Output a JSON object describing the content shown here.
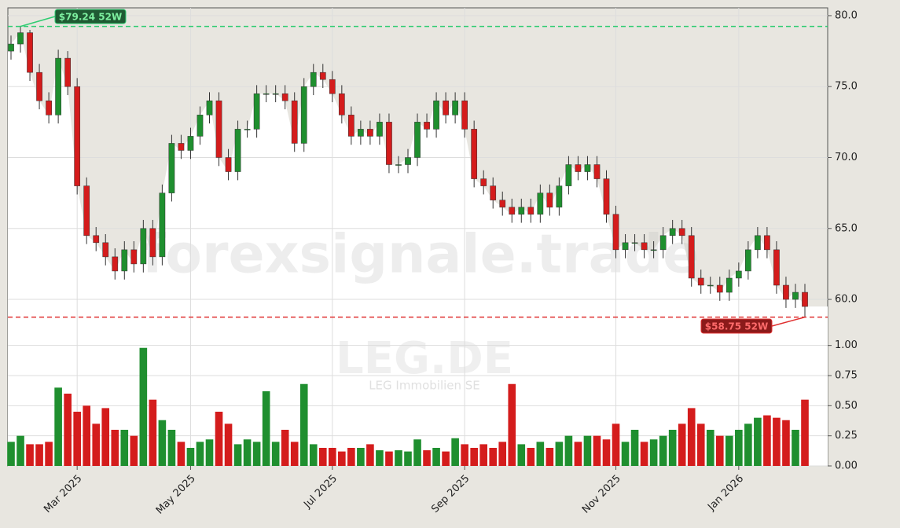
{
  "chart_data": {
    "type": "candlestick",
    "categories": [
      null,
      null,
      null,
      null,
      null,
      null,
      null,
      "Mar 2025",
      null,
      null,
      null,
      null,
      null,
      null,
      null,
      null,
      null,
      null,
      null,
      "May 2025",
      null,
      null,
      null,
      null,
      null,
      null,
      null,
      null,
      null,
      null,
      null,
      null,
      null,
      null,
      "Jul 2025",
      null,
      null,
      null,
      null,
      null,
      null,
      null,
      null,
      null,
      null,
      null,
      null,
      null,
      "Sep 2025",
      null,
      null,
      null,
      null,
      null,
      null,
      null,
      null,
      null,
      null,
      null,
      null,
      null,
      null,
      null,
      "Nov 2025",
      null,
      null,
      null,
      null,
      null,
      null,
      null,
      null,
      null,
      null,
      null,
      null,
      "Jan 2026",
      null,
      null,
      null,
      null,
      null,
      null,
      null
    ],
    "open": [
      77.5,
      78,
      78.8,
      76,
      74,
      73,
      77,
      75,
      68,
      64.5,
      64,
      63,
      62,
      63.5,
      62.5,
      65,
      63,
      67.5,
      71,
      70.5,
      71.5,
      73,
      74,
      70,
      69,
      72,
      72,
      74.5,
      74.5,
      74.5,
      74,
      71,
      75,
      76,
      75.5,
      74.5,
      73,
      71.5,
      72,
      71.5,
      72.5,
      69.5,
      69.5,
      70,
      72.5,
      72,
      74,
      73,
      74,
      72,
      68.5,
      68,
      67,
      66.5,
      66,
      66.5,
      66,
      67.5,
      66.5,
      68,
      69.5,
      69,
      69.5,
      68.5,
      66,
      63.5,
      64,
      64,
      63.5,
      63.5,
      64.5,
      65,
      64.5,
      61.5,
      61,
      61,
      60.5,
      61.5,
      62,
      63.5,
      64.5,
      63.5,
      61,
      60,
      60.5
    ],
    "high": [
      78.6,
      79.24,
      79.0,
      76.6,
      74.6,
      77.6,
      77.5,
      75.6,
      68.6,
      65.1,
      64.6,
      63.6,
      64.1,
      64.1,
      65.6,
      65.6,
      68.1,
      71.6,
      71.6,
      72.1,
      73.6,
      74.6,
      74.6,
      70.6,
      72.6,
      72.6,
      75.1,
      75.1,
      75.1,
      75.1,
      74.6,
      75.6,
      76.6,
      76.6,
      76.1,
      75.1,
      73.6,
      72.6,
      72.6,
      73.1,
      73.1,
      70.1,
      70.6,
      73.1,
      73.1,
      74.6,
      74.6,
      74.6,
      74.6,
      72.6,
      69.1,
      68.6,
      67.6,
      67.1,
      67.1,
      67.1,
      68.1,
      68.1,
      68.6,
      70.1,
      70.1,
      70.1,
      70.1,
      69.1,
      66.6,
      64.6,
      64.6,
      64.6,
      64.1,
      65.1,
      65.6,
      65.6,
      65.1,
      62.1,
      61.6,
      61.6,
      62.1,
      62.6,
      64.1,
      65.1,
      65.1,
      64.1,
      61.6,
      61.1,
      61.1
    ],
    "low": [
      76.9,
      77.4,
      75.4,
      73.4,
      72.4,
      72.4,
      74.4,
      67.4,
      63.9,
      63.4,
      62.4,
      61.4,
      61.4,
      61.9,
      61.9,
      62.4,
      62.4,
      66.9,
      69.9,
      69.9,
      70.9,
      72.4,
      69.4,
      68.4,
      68.4,
      71.4,
      71.4,
      73.9,
      73.9,
      73.4,
      70.4,
      70.4,
      74.4,
      74.9,
      73.9,
      72.4,
      70.9,
      70.9,
      70.9,
      70.9,
      68.9,
      68.9,
      68.9,
      69.4,
      71.4,
      71.4,
      72.4,
      72.4,
      71.4,
      67.9,
      67.4,
      66.4,
      65.9,
      65.4,
      65.4,
      65.4,
      65.4,
      65.9,
      65.9,
      67.4,
      68.4,
      68.4,
      67.9,
      65.4,
      62.9,
      62.9,
      63.4,
      62.9,
      62.9,
      62.9,
      63.9,
      63.9,
      60.9,
      60.4,
      60.4,
      59.9,
      59.9,
      60.9,
      61.4,
      62.9,
      62.9,
      60.4,
      59.4,
      59.4,
      58.75
    ],
    "close": [
      78,
      78.8,
      76,
      74,
      73,
      77,
      75,
      68,
      64.5,
      64,
      63,
      62,
      63.5,
      62.5,
      65,
      63,
      67.5,
      71,
      70.5,
      71.5,
      73,
      74,
      70,
      69,
      72,
      72,
      74.5,
      74.5,
      74.5,
      74,
      71,
      75,
      76,
      75.5,
      74.5,
      73,
      71.5,
      72,
      71.5,
      72.5,
      69.5,
      69.5,
      70,
      72.5,
      72,
      74,
      73,
      74,
      72,
      68.5,
      68,
      67,
      66.5,
      66,
      66.5,
      66,
      67.5,
      66.5,
      68,
      69.5,
      69,
      69.5,
      68.5,
      66,
      63.5,
      64,
      64,
      63.5,
      63.5,
      64.5,
      65,
      64.5,
      61.5,
      61,
      61,
      60.5,
      61.5,
      62,
      63.5,
      64.5,
      63.5,
      61,
      60,
      60.5,
      59.5
    ],
    "ylim": [
      57.4,
      80.55
    ],
    "yticks": [
      {
        "value": 60,
        "label": "60.0"
      },
      {
        "value": 65,
        "label": "65.0"
      },
      {
        "value": 70,
        "label": "70.0"
      },
      {
        "value": 75,
        "label": "75.0"
      },
      {
        "value": 80,
        "label": "80.0"
      }
    ],
    "volume": {
      "values": [
        0.2,
        0.25,
        0.18,
        0.18,
        0.2,
        0.65,
        0.6,
        0.45,
        0.5,
        0.35,
        0.48,
        0.3,
        0.3,
        0.25,
        0.98,
        0.55,
        0.38,
        0.3,
        0.2,
        0.15,
        0.2,
        0.22,
        0.45,
        0.35,
        0.18,
        0.22,
        0.2,
        0.62,
        0.2,
        0.3,
        0.2,
        0.68,
        0.18,
        0.15,
        0.15,
        0.12,
        0.15,
        0.15,
        0.18,
        0.13,
        0.12,
        0.13,
        0.12,
        0.22,
        0.13,
        0.15,
        0.12,
        0.23,
        0.18,
        0.15,
        0.18,
        0.15,
        0.2,
        0.68,
        0.18,
        0.15,
        0.2,
        0.15,
        0.2,
        0.25,
        0.2,
        0.25,
        0.25,
        0.22,
        0.35,
        0.2,
        0.3,
        0.2,
        0.22,
        0.25,
        0.3,
        0.35,
        0.48,
        0.35,
        0.3,
        0.25,
        0.25,
        0.3,
        0.35,
        0.4,
        0.42,
        0.4,
        0.38,
        0.3,
        0.55
      ],
      "ylim": [
        0,
        1.05
      ],
      "yticks": [
        {
          "value": 0,
          "label": "0.00"
        },
        {
          "value": 0.25,
          "label": "0.25"
        },
        {
          "value": 0.5,
          "label": "0.50"
        },
        {
          "value": 0.75,
          "label": "0.75"
        },
        {
          "value": 1,
          "label": "1.00"
        }
      ]
    },
    "up_color": "#1f8f2f",
    "down_color": "#d41c1c",
    "grid": true,
    "annotations": [
      {
        "value": 79.24,
        "label": "$79.24 52W",
        "color": "#2ecc71"
      },
      {
        "value": 58.75,
        "label": "$58.75 52W",
        "color": "#e03030"
      }
    ],
    "watermark": [
      "forexsignale.trade",
      "LEG.DE",
      "LEG Immobilien SE"
    ]
  }
}
